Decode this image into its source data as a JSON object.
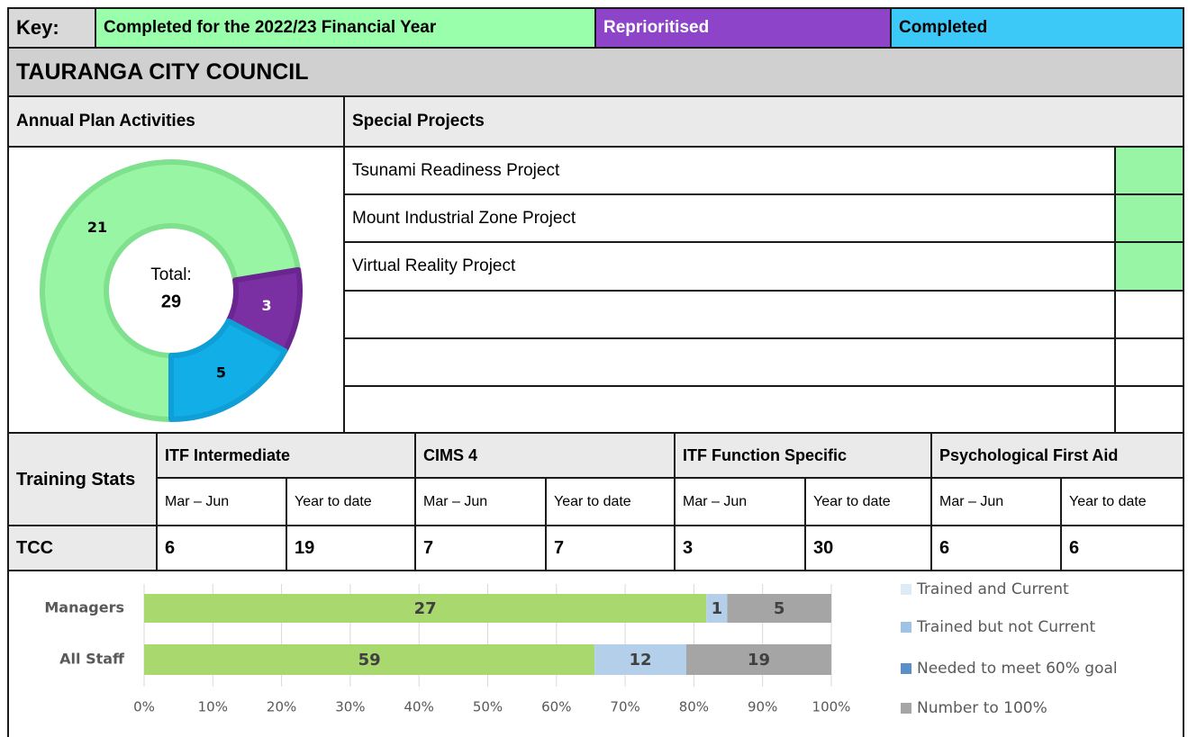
{
  "key": {
    "label": "Key:",
    "items": [
      {
        "label": "Completed for the 2022/23 Financial Year",
        "color": "#99ffaa"
      },
      {
        "label": "Reprioritised",
        "color": "#8e44c9"
      },
      {
        "label": "Completed",
        "color": "#3dc9f8"
      }
    ]
  },
  "title": "TAURANGA CITY COUNCIL",
  "annual_plan": {
    "heading": "Annual Plan Activities"
  },
  "special_projects": {
    "heading": "Special Projects",
    "projects": [
      {
        "name": "Tsunami Readiness Project",
        "status_color": "#99f5a6"
      },
      {
        "name": "Mount Industrial Zone Project",
        "status_color": "#99f5a6"
      },
      {
        "name": "Virtual Reality Project",
        "status_color": "#99f5a6"
      }
    ]
  },
  "training": {
    "heading": "Training Stats",
    "groups": [
      {
        "name": "ITF Intermediate",
        "columns": [
          "Mar – Jun",
          "Year to date"
        ]
      },
      {
        "name": "CIMS 4",
        "columns": [
          "Mar – Jun",
          "Year to date"
        ]
      },
      {
        "name": "ITF Function Specific",
        "columns": [
          "Mar – Jun",
          "Year to date"
        ]
      },
      {
        "name": "Psychological First Aid",
        "columns": [
          "Mar – Jun",
          "Year to date"
        ]
      }
    ],
    "rows": [
      {
        "label": "TCC",
        "values": [
          6,
          19,
          7,
          7,
          3,
          30,
          6,
          6
        ]
      }
    ]
  },
  "chart_data": [
    {
      "type": "donut",
      "values": [
        21,
        3,
        5
      ],
      "colors": [
        "#98f5a4",
        "#7a2fa3",
        "#12aee8"
      ],
      "edge_colors": [
        "#7fe08e",
        "#6a2590",
        "#0f9ed6"
      ],
      "center_label": "Total:",
      "total": 29
    },
    {
      "type": "bar",
      "orientation": "horizontal",
      "stacked": "percent",
      "categories": [
        "Managers",
        "All Staff"
      ],
      "series": [
        {
          "name": "Trained and Current",
          "color": "#a9d86e",
          "legend_color": "#ddebf7",
          "values": [
            27,
            59
          ]
        },
        {
          "name": "Trained but not Current",
          "color": "#b4cfea",
          "legend_color": "#9dc3e6",
          "values": [
            1,
            12
          ]
        },
        {
          "name": "Needed to meet 60% goal",
          "color": "#5b8fc7",
          "legend_color": "#5b8fc7",
          "values": [
            0,
            0
          ]
        },
        {
          "name": "Number to 100%",
          "color": "#a5a5a5",
          "legend_color": "#a5a5a5",
          "values": [
            5,
            19
          ]
        }
      ],
      "xlim": [
        0,
        100
      ],
      "xticks": [
        {
          "value": 0,
          "label": "0%"
        },
        {
          "value": 10,
          "label": "10%"
        },
        {
          "value": 20,
          "label": "20%"
        },
        {
          "value": 30,
          "label": "30%"
        },
        {
          "value": 40,
          "label": "40%"
        },
        {
          "value": 50,
          "label": "50%"
        },
        {
          "value": 60,
          "label": "60%"
        },
        {
          "value": 70,
          "label": "70%"
        },
        {
          "value": 80,
          "label": "80%"
        },
        {
          "value": 90,
          "label": "90%"
        },
        {
          "value": 100,
          "label": "100%"
        }
      ],
      "grid": true,
      "legend": "right"
    }
  ]
}
